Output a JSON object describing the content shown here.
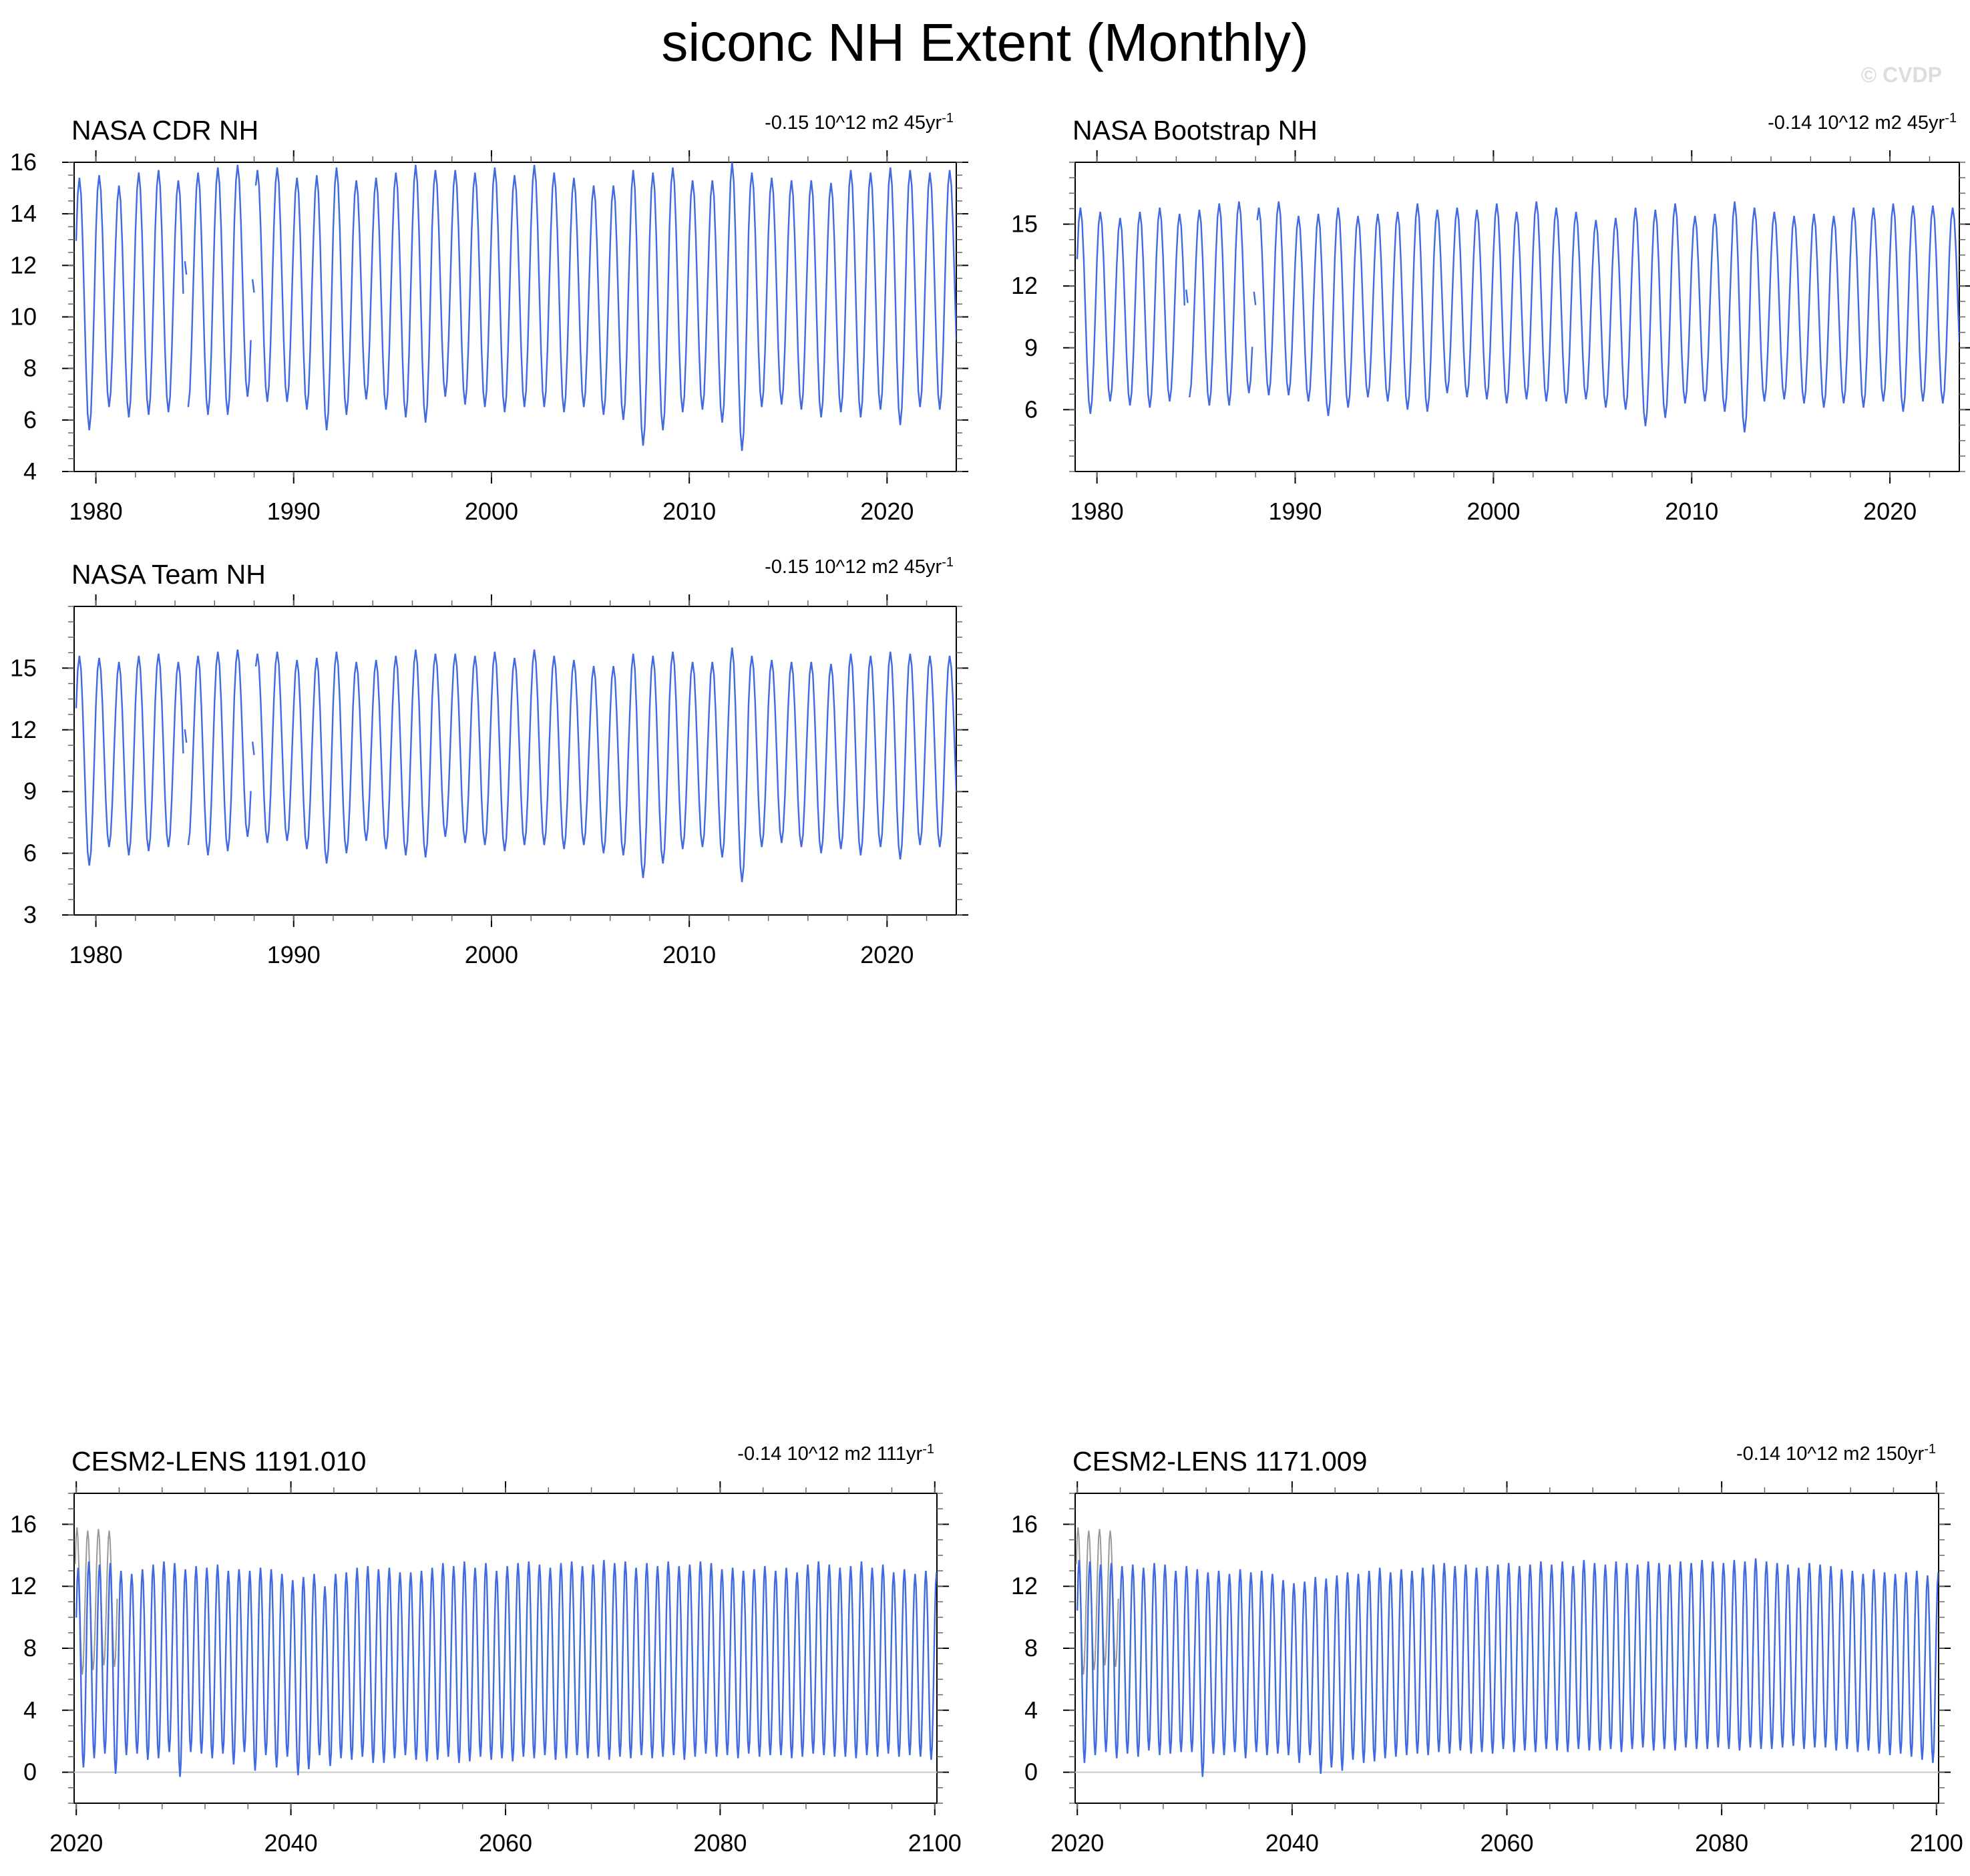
{
  "title": "siconc NH Extent (Monthly)",
  "watermark": "© CVDP",
  "colors": {
    "series": "#4169e1",
    "obs_overlay": "#999999",
    "zero_line": "#c8c8c8",
    "frame": "#000000"
  },
  "chart_data": [
    {
      "type": "line",
      "title": "NASA CDR NH",
      "trend_text": "-0.15 10^12 m2 45yr",
      "trend_sup": "-1",
      "xlim": [
        1978.9,
        2023.5
      ],
      "ylim": [
        4,
        16
      ],
      "yticks": [
        4,
        6,
        8,
        10,
        12,
        14,
        16
      ],
      "xticks": [
        1980,
        1990,
        2000,
        2010,
        2020
      ],
      "series": [
        {
          "max": [
            15.4,
            15.5,
            15.1,
            15.6,
            15.7,
            15.3,
            15.6,
            15.8,
            15.9,
            15.7,
            15.8,
            15.4,
            15.5,
            15.8,
            15.3,
            15.4,
            15.6,
            15.9,
            15.7,
            15.7,
            15.6,
            15.8,
            15.5,
            15.9,
            15.6,
            15.4,
            15.1,
            15.1,
            15.7,
            15.6,
            15.8,
            15.3,
            15.3,
            16.0,
            15.6,
            15.4,
            15.3,
            15.3,
            15.2,
            15.7,
            15.6,
            15.8,
            15.7,
            15.6,
            15.7
          ],
          "min": [
            5.6,
            6.5,
            6.1,
            6.2,
            6.3,
            6.5,
            6.2,
            6.2,
            6.9,
            6.7,
            6.7,
            6.4,
            5.6,
            6.2,
            6.8,
            6.4,
            6.1,
            5.9,
            6.9,
            6.6,
            6.5,
            6.3,
            6.5,
            6.5,
            6.3,
            6.5,
            6.2,
            6.0,
            5.0,
            5.6,
            6.3,
            6.4,
            5.9,
            4.8,
            6.5,
            6.6,
            6.4,
            6.1,
            6.3,
            6.1,
            6.4,
            5.8,
            6.5,
            6.4,
            6.9
          ]
        }
      ],
      "gaps": [
        {
          "x": [
            1984.5,
            1984.58
          ],
          "y": [
            11.9,
            11.9
          ]
        },
        {
          "x": [
            1987.92,
            1988.0
          ],
          "y": [
            11.2,
            11.2
          ]
        }
      ]
    },
    {
      "type": "line",
      "title": "NASA Bootstrap NH",
      "trend_text": "-0.14 10^12 m2 45yr",
      "trend_sup": "-1",
      "xlim": [
        1978.9,
        2023.5
      ],
      "ylim": [
        3,
        18
      ],
      "yticks": [
        6,
        9,
        12,
        15
      ],
      "xticks": [
        1980,
        1990,
        2000,
        2010,
        2020
      ],
      "series": [
        {
          "max": [
            15.8,
            15.6,
            15.3,
            15.6,
            15.8,
            15.5,
            15.7,
            16.0,
            16.1,
            15.8,
            16.1,
            15.4,
            15.5,
            15.8,
            15.4,
            15.5,
            15.6,
            16.0,
            15.7,
            15.8,
            15.7,
            16.0,
            15.6,
            16.1,
            15.8,
            15.6,
            15.2,
            15.3,
            15.8,
            15.7,
            16.0,
            15.4,
            15.5,
            16.1,
            15.8,
            15.6,
            15.4,
            15.5,
            15.4,
            15.8,
            15.8,
            16.0,
            15.9,
            15.9,
            15.8
          ],
          "min": [
            5.8,
            6.4,
            6.2,
            6.1,
            6.4,
            6.6,
            6.2,
            6.2,
            6.8,
            6.7,
            6.7,
            6.4,
            5.7,
            6.1,
            6.6,
            6.4,
            6.0,
            5.9,
            6.8,
            6.6,
            6.5,
            6.3,
            6.5,
            6.4,
            6.3,
            6.5,
            6.1,
            6.0,
            5.2,
            5.6,
            6.3,
            6.4,
            5.9,
            4.9,
            6.4,
            6.5,
            6.3,
            6.1,
            6.3,
            6.1,
            6.4,
            5.9,
            6.4,
            6.3,
            7.1
          ]
        }
      ],
      "gaps": [
        {
          "x": [
            1984.5,
            1984.58
          ],
          "y": [
            11.5,
            11.5
          ]
        },
        {
          "x": [
            1987.92,
            1988.0
          ],
          "y": [
            11.4,
            11.4
          ]
        }
      ]
    },
    {
      "type": "line",
      "title": "NASA Team NH",
      "trend_text": "-0.15 10^12 m2 45yr",
      "trend_sup": "-1",
      "xlim": [
        1978.9,
        2023.5
      ],
      "ylim": [
        3,
        18
      ],
      "yticks": [
        3,
        6,
        9,
        12,
        15
      ],
      "xticks": [
        1980,
        1990,
        2000,
        2010,
        2020
      ],
      "series": [
        {
          "max": [
            15.6,
            15.5,
            15.3,
            15.6,
            15.7,
            15.3,
            15.6,
            15.8,
            15.9,
            15.7,
            15.8,
            15.4,
            15.5,
            15.8,
            15.3,
            15.4,
            15.6,
            15.9,
            15.7,
            15.7,
            15.6,
            15.8,
            15.5,
            15.9,
            15.6,
            15.4,
            15.1,
            15.1,
            15.7,
            15.6,
            15.8,
            15.3,
            15.3,
            16.0,
            15.6,
            15.4,
            15.3,
            15.3,
            15.2,
            15.7,
            15.6,
            15.8,
            15.7,
            15.6,
            15.6
          ],
          "min": [
            5.4,
            6.3,
            5.9,
            6.1,
            6.3,
            6.4,
            5.9,
            6.1,
            6.8,
            6.5,
            6.6,
            6.2,
            5.5,
            6.0,
            6.6,
            6.2,
            5.9,
            5.8,
            6.8,
            6.5,
            6.4,
            6.1,
            6.4,
            6.4,
            6.2,
            6.4,
            6.0,
            5.9,
            4.8,
            5.5,
            6.2,
            6.3,
            5.8,
            4.6,
            6.3,
            6.5,
            6.3,
            6.0,
            6.2,
            5.9,
            6.3,
            5.7,
            6.4,
            6.3,
            6.8
          ]
        }
      ],
      "gaps": [
        {
          "x": [
            1984.5,
            1984.58
          ],
          "y": [
            11.7,
            11.7
          ]
        },
        {
          "x": [
            1987.92,
            1988.0
          ],
          "y": [
            11.1,
            11.1
          ]
        }
      ]
    },
    {
      "type": "line",
      "title": "CESM2-LENS 1191.010",
      "trend_text": "-0.14 10^12 m2 111yr",
      "trend_sup": "-1",
      "xlim": [
        2019.8,
        2100.2
      ],
      "ylim": [
        -2,
        18
      ],
      "yticks": [
        0,
        4,
        8,
        12,
        16
      ],
      "xticks": [
        2020,
        2040,
        2060,
        2080,
        2100
      ],
      "series": [
        {
          "max": [
            13.2,
            13.6,
            13.4,
            13.5,
            13.0,
            12.8,
            13.1,
            13.4,
            13.6,
            13.5,
            13.1,
            13.3,
            13.2,
            13.4,
            13.0,
            13.1,
            13.0,
            13.2,
            13.1,
            12.8,
            12.4,
            12.6,
            12.8,
            12.0,
            12.8,
            12.9,
            13.2,
            13.3,
            13.1,
            13.2,
            12.9,
            12.9,
            13.0,
            13.2,
            13.5,
            13.3,
            13.6,
            13.2,
            13.5,
            13.0,
            13.3,
            13.5,
            13.6,
            13.4,
            13.2,
            13.5,
            13.6,
            13.3,
            13.4,
            13.7,
            13.5,
            13.6,
            13.2,
            13.5,
            13.3,
            13.6,
            13.3,
            13.4,
            13.6,
            13.5,
            13.1,
            13.2,
            13.0,
            13.1,
            13.3,
            13.0,
            13.2,
            12.9,
            13.4,
            13.6,
            13.4,
            13.2,
            13.3,
            13.6,
            13.2,
            13.4,
            12.9,
            13.1,
            12.8,
            13.0,
            12.9
          ],
          "min": [
            0.3,
            0.9,
            1.2,
            -0.1,
            1.1,
            1.2,
            0.8,
            0.9,
            1.3,
            -0.3,
            1.3,
            1.2,
            0.9,
            1.2,
            0.5,
            1.3,
            0.1,
            1.1,
            0.3,
            1.0,
            -0.2,
            0.2,
            1.1,
            0.4,
            0.9,
            0.8,
            1.0,
            0.6,
            0.6,
            0.9,
            1.1,
            0.8,
            0.7,
            0.8,
            1.0,
            0.6,
            0.7,
            1.0,
            0.8,
            0.9,
            0.7,
            1.0,
            0.9,
            1.1,
            0.8,
            0.9,
            1.1,
            0.9,
            1.0,
            0.8,
            1.0,
            0.9,
            1.1,
            0.9,
            1.0,
            1.1,
            0.8,
            1.0,
            1.2,
            1.0,
            1.1,
            0.9,
            1.2,
            1.0,
            1.1,
            1.1,
            0.9,
            1.0,
            1.2,
            1.1,
            1.0,
            1.0,
            0.9,
            1.1,
            1.0,
            1.2,
            1.0,
            1.1,
            1.0,
            0.8,
            0.8
          ]
        }
      ],
      "obs_overlay": {
        "x0": 2019.9,
        "max": [
          15.8,
          15.6,
          15.7,
          15.6
        ],
        "min": [
          6.3,
          6.6,
          6.9,
          6.8
        ]
      }
    },
    {
      "type": "line",
      "title": "CESM2-LENS 1171.009",
      "trend_text": "-0.14 10^12 m2 150yr",
      "trend_sup": "-1",
      "xlim": [
        2019.8,
        2100.2
      ],
      "ylim": [
        -2,
        18
      ],
      "yticks": [
        0,
        4,
        8,
        12,
        16
      ],
      "xticks": [
        2020,
        2040,
        2060,
        2080,
        2100
      ],
      "series": [
        {
          "max": [
            13.7,
            13.6,
            13.4,
            13.5,
            13.3,
            13.4,
            13.2,
            13.5,
            13.4,
            13.0,
            13.3,
            13.1,
            12.9,
            13.0,
            12.8,
            13.1,
            12.9,
            13.0,
            12.8,
            12.4,
            12.2,
            12.3,
            12.6,
            12.5,
            12.7,
            12.9,
            12.8,
            13.0,
            13.2,
            12.9,
            13.1,
            13.0,
            13.2,
            13.4,
            13.5,
            13.3,
            13.4,
            13.2,
            13.3,
            13.4,
            13.5,
            13.3,
            13.4,
            13.6,
            13.4,
            13.6,
            13.3,
            13.7,
            13.5,
            13.4,
            13.6,
            13.5,
            13.4,
            13.6,
            13.5,
            13.4,
            13.6,
            13.5,
            13.7,
            13.6,
            13.5,
            13.7,
            13.6,
            13.8,
            13.6,
            13.5,
            13.4,
            13.2,
            13.5,
            13.4,
            13.3,
            13.1,
            13.0,
            12.8,
            13.1,
            12.9,
            12.8,
            12.9,
            13.0,
            12.7,
            12.9
          ],
          "min": [
            0.6,
            1.1,
            1.3,
            0.9,
            1.2,
            1.0,
            1.4,
            1.1,
            1.2,
            1.3,
            1.3,
            -0.3,
            1.2,
            1.1,
            1.3,
            0.9,
            1.3,
            1.1,
            1.2,
            1.1,
            0.6,
            1.1,
            -0.1,
            0.3,
            0.1,
            0.8,
            0.6,
            0.7,
            0.9,
            1.0,
            1.1,
            1.2,
            1.1,
            1.3,
            1.2,
            1.4,
            1.2,
            1.3,
            1.2,
            1.5,
            1.3,
            1.4,
            1.3,
            1.5,
            1.4,
            1.3,
            1.5,
            1.4,
            1.4,
            1.5,
            1.3,
            1.5,
            1.6,
            1.4,
            1.5,
            1.4,
            1.6,
            1.5,
            1.5,
            1.6,
            1.5,
            1.4,
            1.6,
            1.5,
            1.5,
            1.6,
            1.7,
            1.5,
            1.6,
            1.6,
            1.4,
            1.5,
            1.3,
            1.4,
            1.2,
            1.1,
            1.2,
            1.0,
            0.8,
            0.6,
            0.6
          ]
        }
      ],
      "obs_overlay": {
        "x0": 2019.9,
        "max": [
          15.8,
          15.6,
          15.7,
          15.6
        ],
        "min": [
          6.3,
          6.6,
          6.9,
          6.8
        ]
      }
    }
  ]
}
